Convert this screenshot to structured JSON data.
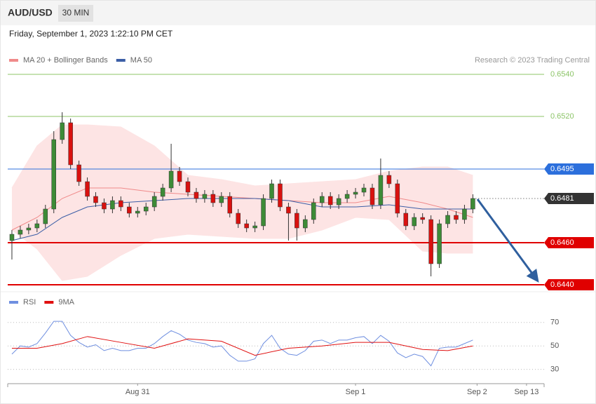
{
  "header": {
    "symbol": "AUD/USD",
    "interval": "30 MIN",
    "timestamp": "Friday, September 1, 2023 1:22:10 PM CET"
  },
  "chart_data": [
    {
      "type": "candlestick",
      "credit": "Research © 2023 Trading Central",
      "up_color": "#3d8b37",
      "down_color": "#d9110f",
      "xlim": [
        -0.5,
        63.5
      ],
      "ylim": [
        0.6437,
        0.6546
      ],
      "open": [
        0.6461,
        0.6464,
        0.6466,
        0.6467,
        0.6469,
        0.6476,
        0.6509,
        0.6517,
        0.6497,
        0.6489,
        0.6482,
        0.6479,
        0.6476,
        0.648,
        0.6477,
        0.6474,
        0.6475,
        0.6477,
        0.6482,
        0.6486,
        0.6494,
        0.6489,
        0.6484,
        0.6481,
        0.6483,
        0.6479,
        0.6482,
        0.6474,
        0.6469,
        0.6467,
        0.6468,
        0.6481,
        0.6488,
        0.6477,
        0.6474,
        0.6467,
        0.6471,
        0.6479,
        0.6482,
        0.6478,
        0.6481,
        0.6483,
        0.6484,
        0.6486,
        0.6478,
        0.6492,
        0.6488,
        0.6474,
        0.6468,
        0.6472,
        0.6471,
        0.645,
        0.6469,
        0.6473,
        0.6471,
        0.6476
      ],
      "high": [
        0.6466,
        0.6468,
        0.6469,
        0.6471,
        0.6478,
        0.6513,
        0.6522,
        0.6519,
        0.6499,
        0.6491,
        0.6484,
        0.6481,
        0.6482,
        0.6482,
        0.6479,
        0.6477,
        0.6479,
        0.6484,
        0.6488,
        0.6507,
        0.6496,
        0.6491,
        0.6486,
        0.6485,
        0.6485,
        0.6484,
        0.6484,
        0.6476,
        0.6471,
        0.647,
        0.6483,
        0.649,
        0.649,
        0.6479,
        0.6476,
        0.6473,
        0.6481,
        0.6484,
        0.6484,
        0.6483,
        0.6485,
        0.6486,
        0.6488,
        0.6488,
        0.65,
        0.6494,
        0.649,
        0.6476,
        0.6474,
        0.6474,
        0.6473,
        0.6471,
        0.6475,
        0.6475,
        0.6478,
        0.6483
      ],
      "low": [
        0.6452,
        0.6462,
        0.6464,
        0.6465,
        0.6467,
        0.6474,
        0.6507,
        0.6495,
        0.6487,
        0.648,
        0.6477,
        0.6474,
        0.6474,
        0.6475,
        0.6472,
        0.6472,
        0.6473,
        0.6475,
        0.648,
        0.6484,
        0.6487,
        0.6482,
        0.6479,
        0.6479,
        0.6477,
        0.6477,
        0.6472,
        0.6467,
        0.6465,
        0.6465,
        0.6466,
        0.6479,
        0.6475,
        0.6461,
        0.6461,
        0.6465,
        0.6469,
        0.6477,
        0.6476,
        0.6476,
        0.6479,
        0.6481,
        0.6482,
        0.6476,
        0.6476,
        0.6486,
        0.6472,
        0.6466,
        0.6466,
        0.6469,
        0.6444,
        0.6448,
        0.6467,
        0.6469,
        0.6469,
        0.6474
      ],
      "close": [
        0.6464,
        0.6466,
        0.6467,
        0.6469,
        0.6476,
        0.6509,
        0.6517,
        0.6497,
        0.6489,
        0.6482,
        0.6479,
        0.6476,
        0.648,
        0.6477,
        0.6474,
        0.6475,
        0.6477,
        0.6482,
        0.6486,
        0.6494,
        0.6489,
        0.6484,
        0.6481,
        0.6483,
        0.6479,
        0.6482,
        0.6474,
        0.6469,
        0.6467,
        0.6468,
        0.6481,
        0.6488,
        0.6477,
        0.6474,
        0.6467,
        0.6471,
        0.6479,
        0.6482,
        0.6478,
        0.6481,
        0.6483,
        0.6484,
        0.6486,
        0.6478,
        0.6492,
        0.6488,
        0.6474,
        0.6468,
        0.6472,
        0.6471,
        0.645,
        0.6469,
        0.6473,
        0.6471,
        0.6476,
        0.6481
      ],
      "overlays": [
        {
          "name": "MA 20 + Bollinger Bands",
          "color": "#f08a8a",
          "band_color": "#fde4e4",
          "x": [
            0,
            3,
            6,
            9,
            13,
            17,
            21,
            25,
            29,
            33,
            37,
            41,
            45,
            49,
            52,
            55
          ],
          "values": [
            0.6466,
            0.6472,
            0.6481,
            0.6486,
            0.6486,
            0.6484,
            0.6483,
            0.6482,
            0.6481,
            0.648,
            0.6479,
            0.6479,
            0.6482,
            0.6479,
            0.6476,
            0.6472
          ],
          "upper": [
            0.6486,
            0.6506,
            0.6516,
            0.6516,
            0.6515,
            0.6506,
            0.6492,
            0.649,
            0.6487,
            0.6488,
            0.6489,
            0.649,
            0.6494,
            0.6496,
            0.6496,
            0.6492
          ],
          "lower": [
            0.6466,
            0.6457,
            0.6442,
            0.6444,
            0.6454,
            0.6462,
            0.6464,
            0.6463,
            0.6462,
            0.6462,
            0.6466,
            0.6472,
            0.6471,
            0.6456,
            0.6455,
            0.6455
          ]
        },
        {
          "name": "MA 50",
          "color": "#3b5ea6",
          "x": [
            0,
            3,
            6,
            9,
            13,
            17,
            21,
            25,
            29,
            33,
            37,
            41,
            45,
            49,
            52,
            55
          ],
          "values": [
            0.6461,
            0.6464,
            0.6472,
            0.6477,
            0.6479,
            0.648,
            0.6481,
            0.6481,
            0.6481,
            0.648,
            0.6477,
            0.6477,
            0.6478,
            0.6476,
            0.6476,
            0.6476
          ]
        }
      ],
      "levels": [
        {
          "value": 0.654,
          "label": "0.6540",
          "color": "#8cc467",
          "label_style": "text"
        },
        {
          "value": 0.652,
          "label": "0.6520",
          "color": "#8cc467",
          "label_style": "text"
        },
        {
          "value": 0.6495,
          "color": "#2c6fdc",
          "label_style": "box"
        },
        {
          "value": 0.6481,
          "color": "#333333",
          "label_style": "box",
          "line_style": "dotted"
        },
        {
          "value": 0.646,
          "label": "0.6460",
          "color": "#e00000",
          "label_style": "box"
        },
        {
          "value": 0.644,
          "label": "0.6440",
          "color": "#e00000",
          "label_style": "box"
        }
      ]
    },
    {
      "type": "line",
      "xlim": [
        -0.5,
        63.5
      ],
      "ylim": [
        19,
        95
      ],
      "yticks": [
        30,
        50,
        70
      ],
      "xticks": [
        {
          "value": 15,
          "label": "Aug 31"
        },
        {
          "value": 41,
          "label": "Sep 1"
        },
        {
          "value": 55.5,
          "label": "Sep 2"
        },
        {
          "value": 61.4,
          "label": "Sep 13"
        }
      ],
      "series": [
        {
          "name": "RSI",
          "color": "#6f8fe0",
          "values": [
            43,
            50,
            49,
            52,
            61,
            71,
            71,
            59,
            53,
            49,
            51,
            46,
            48,
            46,
            46,
            48,
            48,
            52,
            58,
            63,
            60,
            55,
            53,
            52,
            49,
            50,
            42,
            37,
            37,
            39,
            52,
            59,
            48,
            43,
            42,
            46,
            54,
            55,
            52,
            55,
            55,
            57,
            58,
            52,
            59,
            54,
            44,
            40,
            43,
            41,
            33,
            48,
            49,
            49,
            52,
            55
          ]
        },
        {
          "name": "9MA",
          "color": "#e01010",
          "x": [
            0,
            3,
            6,
            9,
            13,
            17,
            21,
            25,
            29,
            33,
            37,
            41,
            45,
            49,
            52,
            55
          ],
          "values": [
            48,
            48,
            52,
            58,
            53,
            48,
            56,
            54,
            42,
            48,
            50,
            53,
            53,
            47,
            46,
            50
          ]
        }
      ]
    }
  ]
}
